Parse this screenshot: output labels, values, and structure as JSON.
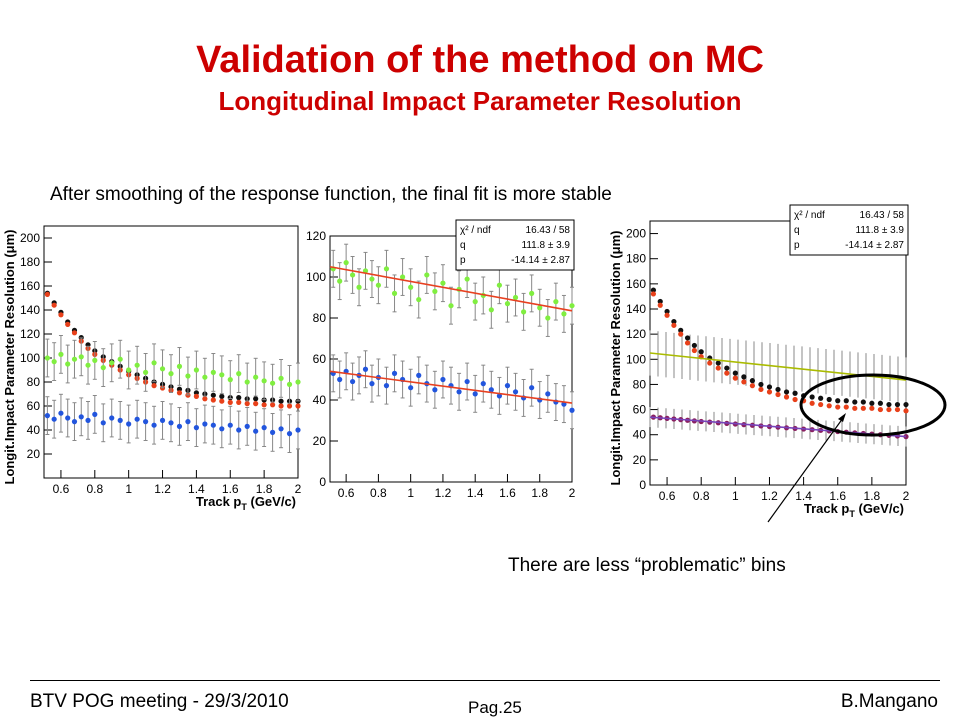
{
  "slide": {
    "title": "Validation of the method on MC",
    "subtitle": "Longitudinal Impact Parameter Resolution",
    "note": "After smoothing of the response function, the final fit is more stable",
    "callout": "There are less “problematic” bins"
  },
  "footer": {
    "left": "BTV POG meeting - 29/3/2010",
    "center": "Pag.25",
    "right": "B.Mangano"
  },
  "colors": {
    "title": "#cc0000",
    "black_series": "#111111",
    "red_series": "#e8401a",
    "green_series": "#80ee40",
    "blue_series": "#2255dd",
    "fit_line": "#e84020",
    "yellow_fit": "#aabb00",
    "purple_fit": "#7744bb",
    "error_bar": "#888888"
  },
  "chart_data": [
    {
      "type": "scatter",
      "xlabel": "Track p_T (GeV/c)",
      "ylabel": "Longit.Impact Parameter Resolution (μm)",
      "xlim": [
        0.5,
        2.0
      ],
      "ylim": [
        0,
        210
      ],
      "xticks": [
        "0.6",
        "0.8",
        "1",
        "1.2",
        "1.4",
        "1.6",
        "1.8",
        "2"
      ],
      "yticks": [
        "20",
        "40",
        "60",
        "80",
        "100",
        "120",
        "140",
        "160",
        "180",
        "200"
      ],
      "legend": null,
      "series": [
        {
          "color": "#111111",
          "errors": false,
          "x": [
            0.52,
            0.56,
            0.6,
            0.64,
            0.68,
            0.72,
            0.76,
            0.8,
            0.85,
            0.9,
            0.95,
            1.0,
            1.05,
            1.1,
            1.15,
            1.2,
            1.25,
            1.3,
            1.35,
            1.4,
            1.45,
            1.5,
            1.55,
            1.6,
            1.65,
            1.7,
            1.75,
            1.8,
            1.85,
            1.9,
            1.95,
            2.0
          ],
          "y": [
            154,
            146,
            138,
            130,
            123,
            117,
            111,
            106,
            101,
            97,
            93,
            89,
            86,
            83,
            80,
            78,
            76,
            74,
            73,
            71,
            70,
            69,
            68,
            67,
            67,
            66,
            66,
            65,
            65,
            64,
            64,
            64
          ]
        },
        {
          "color": "#e8401a",
          "errors": false,
          "x": [
            0.52,
            0.56,
            0.6,
            0.64,
            0.68,
            0.72,
            0.76,
            0.8,
            0.85,
            0.9,
            0.95,
            1.0,
            1.05,
            1.1,
            1.15,
            1.2,
            1.25,
            1.3,
            1.35,
            1.4,
            1.45,
            1.5,
            1.55,
            1.6,
            1.65,
            1.7,
            1.75,
            1.8,
            1.85,
            1.9,
            1.95,
            2.0
          ],
          "y": [
            153,
            144,
            136,
            128,
            121,
            114,
            108,
            103,
            98,
            94,
            90,
            86,
            83,
            80,
            77,
            75,
            73,
            71,
            69,
            68,
            66,
            65,
            64,
            63,
            63,
            62,
            62,
            61,
            61,
            60,
            60,
            60
          ]
        },
        {
          "color": "#80ee40",
          "errors": true,
          "x": [
            0.52,
            0.56,
            0.6,
            0.64,
            0.68,
            0.72,
            0.76,
            0.8,
            0.85,
            0.9,
            0.95,
            1.0,
            1.05,
            1.1,
            1.15,
            1.2,
            1.25,
            1.3,
            1.35,
            1.4,
            1.45,
            1.5,
            1.55,
            1.6,
            1.65,
            1.7,
            1.75,
            1.8,
            1.85,
            1.9,
            1.95,
            2.0
          ],
          "y": [
            100,
            97,
            103,
            95,
            99,
            101,
            94,
            98,
            92,
            96,
            99,
            90,
            94,
            88,
            96,
            91,
            87,
            93,
            85,
            90,
            84,
            88,
            86,
            82,
            87,
            80,
            84,
            81,
            79,
            83,
            78,
            80
          ]
        },
        {
          "color": "#2255dd",
          "errors": true,
          "x": [
            0.52,
            0.56,
            0.6,
            0.64,
            0.68,
            0.72,
            0.76,
            0.8,
            0.85,
            0.9,
            0.95,
            1.0,
            1.05,
            1.1,
            1.15,
            1.2,
            1.25,
            1.3,
            1.35,
            1.4,
            1.45,
            1.5,
            1.55,
            1.6,
            1.65,
            1.7,
            1.75,
            1.8,
            1.85,
            1.9,
            1.95,
            2.0
          ],
          "y": [
            52,
            49,
            54,
            50,
            47,
            51,
            48,
            53,
            46,
            50,
            48,
            45,
            49,
            47,
            44,
            48,
            46,
            43,
            47,
            42,
            45,
            44,
            41,
            44,
            40,
            43,
            39,
            42,
            38,
            41,
            37,
            40
          ]
        }
      ]
    },
    {
      "type": "scatter",
      "xlabel": "",
      "ylabel": "",
      "xlim": [
        0.5,
        2.0
      ],
      "ylim": [
        0,
        120
      ],
      "xticks": [
        "0.6",
        "0.8",
        "1",
        "1.2",
        "1.4",
        "1.6",
        "1.8",
        "2"
      ],
      "yticks": [
        "0",
        "20",
        "40",
        "60",
        "80",
        "100",
        "120"
      ],
      "stats": [
        [
          "χ² / ndf",
          "16.43 / 58"
        ],
        [
          "q",
          "111.8 ± 3.9"
        ],
        [
          "p",
          "-14.14 ± 2.87"
        ]
      ],
      "series": [
        {
          "color": "#80ee40",
          "errors": true,
          "x": [
            0.52,
            0.56,
            0.6,
            0.64,
            0.68,
            0.72,
            0.76,
            0.8,
            0.85,
            0.9,
            0.95,
            1.0,
            1.05,
            1.1,
            1.15,
            1.2,
            1.25,
            1.3,
            1.35,
            1.4,
            1.45,
            1.5,
            1.55,
            1.6,
            1.65,
            1.7,
            1.75,
            1.8,
            1.85,
            1.9,
            1.95,
            2.0
          ],
          "y": [
            104,
            98,
            107,
            101,
            95,
            103,
            99,
            96,
            104,
            92,
            100,
            95,
            89,
            101,
            93,
            97,
            86,
            94,
            99,
            88,
            91,
            84,
            96,
            87,
            90,
            83,
            92,
            85,
            80,
            88,
            82,
            86
          ]
        },
        {
          "color": "#2255dd",
          "errors": true,
          "x": [
            0.52,
            0.56,
            0.6,
            0.64,
            0.68,
            0.72,
            0.76,
            0.8,
            0.85,
            0.9,
            0.95,
            1.0,
            1.05,
            1.1,
            1.15,
            1.2,
            1.25,
            1.3,
            1.35,
            1.4,
            1.45,
            1.5,
            1.55,
            1.6,
            1.65,
            1.7,
            1.75,
            1.8,
            1.85,
            1.9,
            1.95,
            2.0
          ],
          "y": [
            53,
            50,
            54,
            49,
            52,
            55,
            48,
            51,
            47,
            53,
            50,
            46,
            52,
            48,
            45,
            50,
            47,
            44,
            49,
            43,
            48,
            45,
            42,
            47,
            44,
            41,
            46,
            40,
            43,
            39,
            38,
            35
          ]
        }
      ],
      "fits": [
        {
          "color": "#e84020",
          "x": [
            0.5,
            2.0
          ],
          "y": [
            105.0,
            83.5
          ]
        },
        {
          "color": "#e84020",
          "x": [
            0.5,
            2.0
          ],
          "y": [
            54.0,
            38.5
          ]
        }
      ]
    },
    {
      "type": "scatter",
      "xlabel": "Track p_T (GeV/c)",
      "ylabel": "Longit.Impact Parameter Resolution (μm)",
      "xlim": [
        0.5,
        2.0
      ],
      "ylim": [
        0,
        210
      ],
      "xticks": [
        "0.6",
        "0.8",
        "1",
        "1.2",
        "1.4",
        "1.6",
        "1.8",
        "2"
      ],
      "yticks": [
        "0",
        "20",
        "40",
        "60",
        "80",
        "100",
        "120",
        "140",
        "160",
        "180",
        "200"
      ],
      "stats": [
        [
          "χ² / ndf",
          "16.43 / 58"
        ],
        [
          "q",
          "111.8 ± 3.9"
        ],
        [
          "p",
          "-14.14 ± 2.87"
        ]
      ],
      "series": [
        {
          "color": "#111111",
          "errors": false,
          "x": [
            0.52,
            0.56,
            0.6,
            0.64,
            0.68,
            0.72,
            0.76,
            0.8,
            0.85,
            0.9,
            0.95,
            1.0,
            1.05,
            1.1,
            1.15,
            1.2,
            1.25,
            1.3,
            1.35,
            1.4,
            1.45,
            1.5,
            1.55,
            1.6,
            1.65,
            1.7,
            1.75,
            1.8,
            1.85,
            1.9,
            1.95,
            2.0
          ],
          "y": [
            155,
            146,
            138,
            130,
            123,
            117,
            111,
            106,
            101,
            97,
            93,
            89,
            86,
            83,
            80,
            78,
            76,
            74,
            73,
            71,
            70,
            69,
            68,
            67,
            67,
            66,
            66,
            65,
            65,
            64,
            64,
            64
          ]
        },
        {
          "color": "#e8401a",
          "errors": false,
          "x": [
            0.52,
            0.56,
            0.6,
            0.64,
            0.68,
            0.72,
            0.76,
            0.8,
            0.85,
            0.9,
            0.95,
            1.0,
            1.05,
            1.1,
            1.15,
            1.2,
            1.25,
            1.3,
            1.35,
            1.4,
            1.45,
            1.5,
            1.55,
            1.6,
            1.65,
            1.7,
            1.75,
            1.8,
            1.85,
            1.9,
            1.95,
            2.0
          ],
          "y": [
            152,
            143,
            135,
            127,
            120,
            113,
            107,
            102,
            97,
            93,
            89,
            85,
            82,
            79,
            76,
            74,
            72,
            70,
            68,
            67,
            65,
            64,
            63,
            62,
            62,
            61,
            61,
            61,
            60,
            60,
            60,
            59
          ]
        },
        {
          "color": "#8a2060",
          "errors": false,
          "x": [
            0.52,
            0.56,
            0.6,
            0.64,
            0.68,
            0.72,
            0.76,
            0.8,
            0.85,
            0.9,
            0.95,
            1.0,
            1.05,
            1.1,
            1.15,
            1.2,
            1.25,
            1.3,
            1.35,
            1.4,
            1.45,
            1.5,
            1.55,
            1.6,
            1.65,
            1.7,
            1.75,
            1.8,
            1.85,
            1.9,
            1.95,
            2.0
          ],
          "y": [
            54,
            53.5,
            53,
            52.5,
            52,
            51.5,
            51,
            50.5,
            50,
            49.5,
            49,
            48.5,
            48,
            47.5,
            47,
            46.5,
            46,
            45.5,
            45,
            44.5,
            44,
            43.5,
            43,
            42.5,
            42,
            41.5,
            41,
            40.5,
            40,
            39.5,
            39,
            38.5
          ]
        }
      ],
      "bands": [
        {
          "color": "#888888",
          "x": [
            0.5,
            2.0
          ],
          "y": [
            105.0,
            83.5
          ],
          "halfwidth": 18
        },
        {
          "color": "#888888",
          "x": [
            0.5,
            2.0
          ],
          "y": [
            54.0,
            38.5
          ],
          "halfwidth": 8
        }
      ],
      "fits": [
        {
          "color": "#aabb00",
          "x": [
            0.5,
            2.0
          ],
          "y": [
            105.0,
            83.5
          ]
        },
        {
          "color": "#7744bb",
          "x": [
            0.5,
            2.0
          ],
          "y": [
            54.0,
            38.5
          ]
        }
      ]
    }
  ]
}
